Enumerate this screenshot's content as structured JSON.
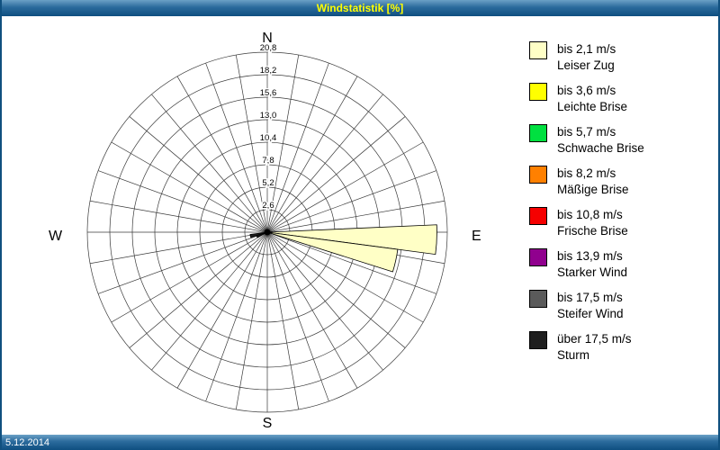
{
  "window": {
    "title": "Windstatistik [%]",
    "status_date": "5.12.2014"
  },
  "legend": {
    "items": [
      {
        "speed": "bis 2,1 m/s",
        "name": "Leiser Zug",
        "color": "#FFFFC6"
      },
      {
        "speed": "bis 3,6 m/s",
        "name": "Leichte Brise",
        "color": "#FFFF00"
      },
      {
        "speed": "bis 5,7 m/s",
        "name": "Schwache Brise",
        "color": "#00E040"
      },
      {
        "speed": "bis 8,2 m/s",
        "name": "Mäßige Brise",
        "color": "#FF8000"
      },
      {
        "speed": "bis 10,8 m/s",
        "name": "Frische Brise",
        "color": "#F50000"
      },
      {
        "speed": "bis 13,9 m/s",
        "name": "Starker Wind",
        "color": "#90008E"
      },
      {
        "speed": "bis 17,5 m/s",
        "name": "Steifer Wind",
        "color": "#5A5A5A"
      },
      {
        "speed": "über 17,5 m/s",
        "name": "Sturm",
        "color": "#1E1E1E"
      }
    ]
  },
  "chart_data": {
    "type": "windrose",
    "title": "Windstatistik [%]",
    "units": "%",
    "max_value": 20.8,
    "ring_values": [
      2.6,
      5.2,
      7.8,
      10.4,
      13.0,
      15.6,
      18.2,
      20.8
    ],
    "ring_labels": [
      "2,6",
      "5,2",
      "7,8",
      "10,4",
      "13,0",
      "15,6",
      "18,2",
      "20,8"
    ],
    "spoke_count": 36,
    "sector_width_deg": 10,
    "compass": {
      "north": "N",
      "south": "S",
      "east": "E",
      "west": "W"
    },
    "sectors": [
      {
        "dir_deg": 92.5,
        "value": 19.6,
        "speed_class": "bis 2,1 m/s",
        "color": "#FFFFC6"
      },
      {
        "dir_deg": 102.5,
        "value": 15.2,
        "speed_class": "bis 2,1 m/s",
        "color": "#FFFFC6"
      },
      {
        "dir_deg": 257.5,
        "value": 2.0,
        "speed_class": "über 17,5 m/s",
        "color": "#1E1E1E"
      },
      {
        "dir_deg": 247.5,
        "value": 1.3,
        "speed_class": "über 17,5 m/s",
        "color": "#1E1E1E"
      }
    ],
    "center_dot_color": "#000000",
    "grid_color": "#3a3a3a"
  }
}
